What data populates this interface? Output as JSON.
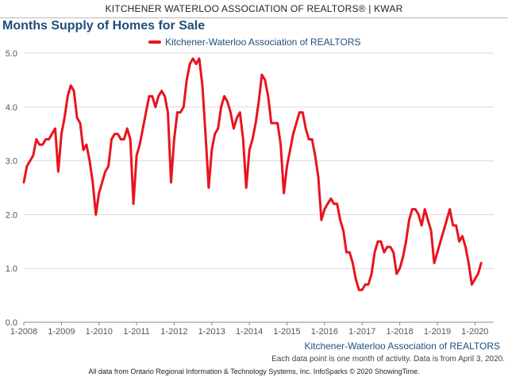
{
  "header": {
    "banner": "KITCHENER WATERLOO ASSOCIATION OF REALTORS® | KWAR"
  },
  "footer": {
    "note": "Each data point is one month of activity. Data is from April 3, 2020.",
    "credit": "All data from Ontario Regional Information & Technology Systems, Inc. InfoSparks © 2020 ShowingTime."
  },
  "colors": {
    "series": "#e8141e",
    "title": "#1f4e79",
    "grid": "#d9d9d9"
  },
  "chart_data": {
    "type": "line",
    "title": "Months Supply of Homes for Sale",
    "xlabel": "Kitchener-Waterloo Association of REALTORS",
    "ylabel": "",
    "ylim": [
      0,
      5
    ],
    "yticks": [
      "0.0",
      "1.0",
      "2.0",
      "3.0",
      "4.0",
      "5.0"
    ],
    "xticks": [
      "1-2008",
      "1-2009",
      "1-2010",
      "1-2011",
      "1-2012",
      "1-2013",
      "1-2014",
      "1-2015",
      "1-2016",
      "1-2017",
      "1-2018",
      "1-2019",
      "1-2020"
    ],
    "grid": true,
    "legend_position": "top",
    "start": "1-2008",
    "series": [
      {
        "name": "Kitchener-Waterloo Association of REALTORS",
        "values": [
          2.6,
          2.9,
          3.0,
          3.1,
          3.4,
          3.3,
          3.3,
          3.4,
          3.4,
          3.5,
          3.6,
          2.8,
          3.5,
          3.8,
          4.2,
          4.4,
          4.3,
          3.8,
          3.7,
          3.2,
          3.3,
          3.0,
          2.6,
          2.0,
          2.4,
          2.6,
          2.8,
          2.9,
          3.4,
          3.5,
          3.5,
          3.4,
          3.4,
          3.6,
          3.4,
          2.2,
          3.1,
          3.3,
          3.6,
          3.9,
          4.2,
          4.2,
          4.0,
          4.2,
          4.3,
          4.2,
          3.9,
          2.6,
          3.4,
          3.9,
          3.9,
          4.0,
          4.5,
          4.8,
          4.9,
          4.8,
          4.9,
          4.4,
          3.5,
          2.5,
          3.2,
          3.5,
          3.6,
          4.0,
          4.2,
          4.1,
          3.9,
          3.6,
          3.8,
          3.9,
          3.4,
          2.5,
          3.2,
          3.4,
          3.7,
          4.1,
          4.6,
          4.5,
          4.2,
          3.7,
          3.7,
          3.7,
          3.3,
          2.4,
          2.9,
          3.2,
          3.5,
          3.7,
          3.9,
          3.9,
          3.6,
          3.4,
          3.4,
          3.1,
          2.7,
          1.9,
          2.1,
          2.2,
          2.3,
          2.2,
          2.2,
          1.9,
          1.7,
          1.3,
          1.3,
          1.1,
          0.8,
          0.6,
          0.6,
          0.7,
          0.7,
          0.9,
          1.3,
          1.5,
          1.5,
          1.3,
          1.4,
          1.4,
          1.3,
          0.9,
          1.0,
          1.2,
          1.5,
          1.9,
          2.1,
          2.1,
          2.0,
          1.8,
          2.1,
          1.9,
          1.7,
          1.1,
          1.3,
          1.5,
          1.7,
          1.9,
          2.1,
          1.8,
          1.8,
          1.5,
          1.6,
          1.4,
          1.1,
          0.7,
          0.8,
          0.9,
          1.1
        ]
      }
    ]
  }
}
